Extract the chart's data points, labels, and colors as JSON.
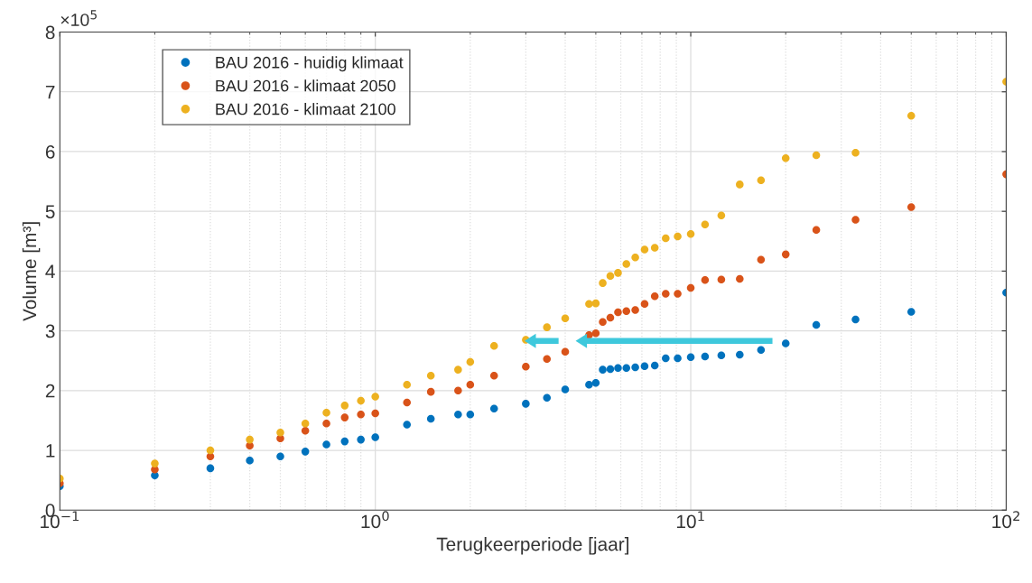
{
  "chart_data": {
    "type": "scatter",
    "xlabel": "Terugkeerperiode [jaar]",
    "ylabel": "Volume [m³]",
    "annotations": [
      "×10$^{5}$"
    ],
    "log": "x",
    "xlim": [
      0.1,
      100
    ],
    "xticks": [
      {
        "value": 0.1,
        "label": "10$^{−1}$"
      },
      {
        "value": 1,
        "label": "10$^{0}$"
      },
      {
        "value": 10,
        "label": "10$^{1}$"
      },
      {
        "value": 100,
        "label": "10$^{2}$"
      }
    ],
    "ylim": [
      0,
      8
    ],
    "yticks": [
      0,
      1,
      2,
      3,
      4,
      5,
      6,
      7,
      8
    ],
    "grid": true,
    "legend": "top left",
    "marker": "circle",
    "x": [
      0.1,
      0.2,
      0.3,
      0.4,
      0.5,
      0.6,
      0.7,
      0.8,
      0.9,
      1,
      1.26,
      1.5,
      1.83,
      2,
      2.38,
      3,
      3.5,
      4,
      4.76,
      5,
      5.26,
      5.56,
      5.88,
      6.25,
      6.67,
      7.14,
      7.69,
      8.33,
      9.09,
      10,
      11.1,
      12.5,
      14.3,
      16.7,
      20,
      25,
      33.3,
      50,
      100
    ],
    "series": [
      {
        "name": "BAU 2016 - huidig klimaat",
        "color": "#0072bd",
        "values": [
          0.4,
          0.58,
          0.7,
          0.83,
          0.9,
          0.98,
          1.1,
          1.15,
          1.18,
          1.22,
          1.43,
          1.53,
          1.6,
          1.6,
          1.7,
          1.78,
          1.88,
          2.02,
          2.1,
          2.13,
          2.35,
          2.36,
          2.38,
          2.38,
          2.39,
          2.41,
          2.42,
          2.54,
          2.54,
          2.56,
          2.57,
          2.59,
          2.6,
          2.68,
          2.79,
          3.1,
          3.19,
          3.32,
          3.64
        ]
      },
      {
        "name": "BAU 2016 - klimaat 2050",
        "color": "#d95319",
        "values": [
          0.45,
          0.68,
          0.9,
          1.08,
          1.2,
          1.33,
          1.45,
          1.55,
          1.6,
          1.62,
          1.8,
          1.98,
          2.0,
          2.1,
          2.25,
          2.4,
          2.53,
          2.65,
          2.93,
          2.96,
          3.15,
          3.22,
          3.31,
          3.33,
          3.35,
          3.45,
          3.58,
          3.62,
          3.62,
          3.72,
          3.85,
          3.86,
          3.87,
          4.19,
          4.28,
          4.69,
          4.86,
          5.07,
          5.62
        ]
      },
      {
        "name": "BAU 2016 - klimaat 2100",
        "color": "#edb120",
        "values": [
          0.53,
          0.78,
          1.0,
          1.18,
          1.3,
          1.45,
          1.63,
          1.75,
          1.83,
          1.9,
          2.1,
          2.25,
          2.35,
          2.48,
          2.75,
          2.85,
          3.06,
          3.21,
          3.45,
          3.46,
          3.8,
          3.92,
          3.97,
          4.12,
          4.23,
          4.36,
          4.39,
          4.55,
          4.58,
          4.62,
          4.78,
          4.93,
          5.45,
          5.52,
          5.89,
          5.94,
          5.98,
          6.6,
          7.17
        ]
      }
    ]
  }
}
